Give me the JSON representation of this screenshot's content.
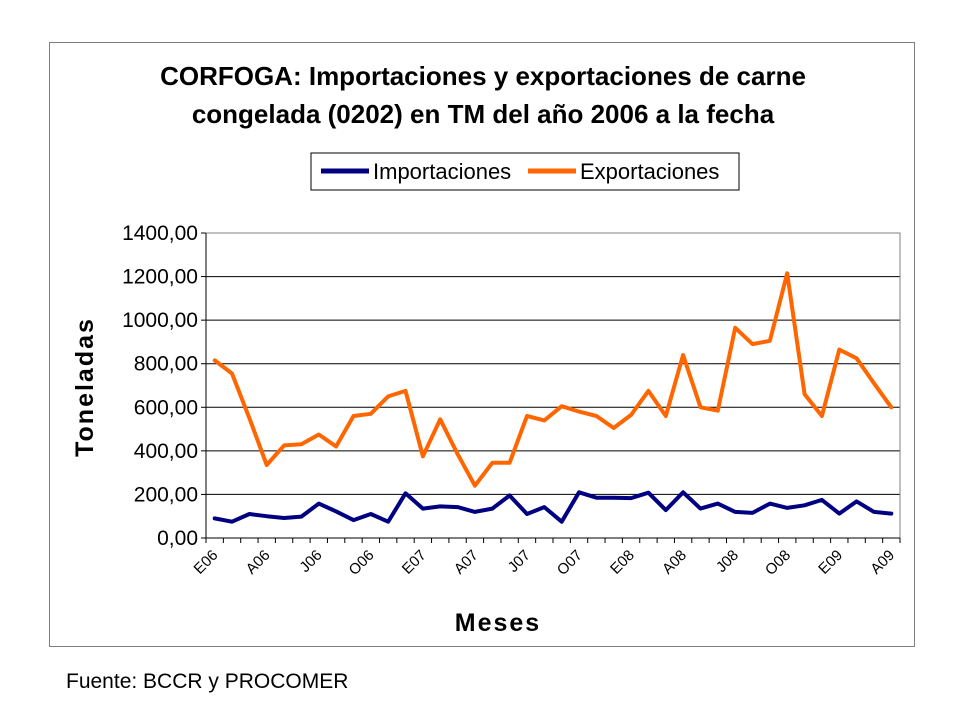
{
  "chart_data": {
    "type": "line",
    "title_line1": "CORFOGA: Importaciones y exportaciones de carne",
    "title_line2": "congelada (0202) en TM del año 2006 a la fecha",
    "xlabel": "Meses",
    "ylabel": "Toneladas",
    "ylim": [
      0,
      1400
    ],
    "yticks": [
      "0,00",
      "200,00",
      "400,00",
      "600,00",
      "800,00",
      "1000,00",
      "1200,00",
      "1400,00"
    ],
    "xtick_labels": [
      "E06",
      "A06",
      "J06",
      "O06",
      "E07",
      "A07",
      "J07",
      "O07",
      "E08",
      "A08",
      "J08",
      "O08",
      "E09",
      "A09"
    ],
    "xtick_step": 3,
    "grid": "horizontal",
    "legend_position": "top",
    "series": [
      {
        "name": "Importaciones",
        "color": "#000080",
        "values": [
          90,
          75,
          110,
          100,
          92,
          98,
          158,
          122,
          82,
          110,
          75,
          205,
          135,
          145,
          142,
          120,
          135,
          195,
          110,
          142,
          75,
          210,
          185,
          185,
          183,
          208,
          128,
          210,
          135,
          158,
          120,
          115,
          158,
          138,
          150,
          175,
          112,
          168,
          120,
          112
        ]
      },
      {
        "name": "Exportaciones",
        "color": "#FF6600",
        "values": [
          815,
          755,
          550,
          335,
          425,
          430,
          475,
          420,
          560,
          570,
          650,
          675,
          375,
          545,
          385,
          240,
          345,
          345,
          560,
          540,
          605,
          580,
          560,
          505,
          565,
          675,
          560,
          840,
          600,
          585,
          965,
          890,
          905,
          1215,
          660,
          560,
          865,
          825,
          710,
          600
        ]
      }
    ]
  },
  "source": "Fuente: BCCR y PROCOMER"
}
